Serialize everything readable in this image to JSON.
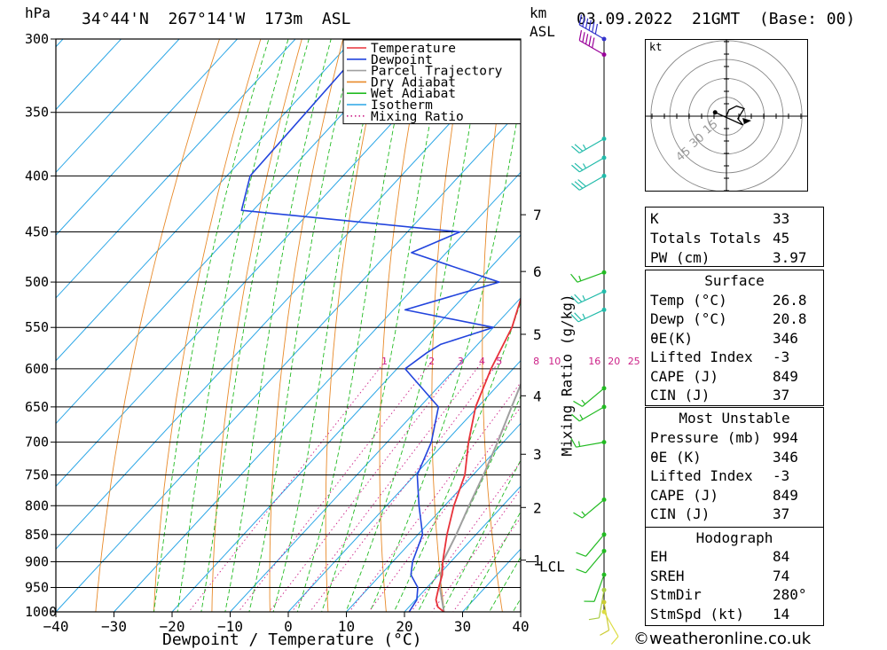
{
  "header": {
    "unit_hpa": "hPa",
    "location": "34°44'N  267°14'W  173m  ASL",
    "unit_km": "km",
    "unit_km2": "ASL",
    "datetime": "03.09.2022  21GMT  (Base: 00)"
  },
  "footer": {
    "copyright": "©weatheronline.co.uk"
  },
  "chart_data": {
    "type": "skew-t",
    "xlabel": "Dewpoint / Temperature (°C)",
    "ylabel_right": "Mixing Ratio (g/kg)",
    "xlim": [
      -40,
      40
    ],
    "ylim": [
      1000,
      300
    ],
    "xticks": [
      -40,
      -30,
      -20,
      -10,
      0,
      10,
      20,
      30,
      40
    ],
    "pressure_levels": [
      300,
      350,
      400,
      450,
      500,
      550,
      600,
      650,
      700,
      750,
      800,
      850,
      900,
      950,
      1000
    ],
    "height_ticks": [
      {
        "label": "7",
        "p": 434
      },
      {
        "label": "6",
        "p": 489
      },
      {
        "label": "5",
        "p": 558
      },
      {
        "label": "4",
        "p": 635
      },
      {
        "label": "3",
        "p": 718
      },
      {
        "label": "2",
        "p": 803
      },
      {
        "label": "1",
        "p": 897
      }
    ],
    "lcl": {
      "label": "LCL",
      "p": 900
    },
    "mixing_ratio_labels": [
      "1",
      "2",
      "3",
      "4",
      "5",
      "8",
      "10",
      "16",
      "20",
      "25"
    ],
    "mixing_ratio_values": [
      1,
      2,
      3,
      4,
      5,
      8,
      10,
      16,
      20,
      25
    ],
    "legend": [
      "Temperature",
      "Dewpoint",
      "Parcel Trajectory",
      "Dry Adiabat",
      "Wet Adiabat",
      "Isotherm",
      "Mixing Ratio"
    ],
    "colors": {
      "temperature": "#e8323a",
      "dewpoint": "#2244dd",
      "parcel": "#a0a0a0",
      "dry_adiabat": "#e88a2a",
      "wet_adiabat": "#22bb22",
      "isotherm": "#2aa6e6",
      "mixing_ratio": "#cc2288",
      "grid": "#000000"
    },
    "temperature": [
      {
        "p": 1000,
        "t": 26.8
      },
      {
        "p": 990,
        "t": 25.0
      },
      {
        "p": 975,
        "t": 23.5
      },
      {
        "p": 950,
        "t": 22.0
      },
      {
        "p": 925,
        "t": 20.6
      },
      {
        "p": 900,
        "t": 18.6
      },
      {
        "p": 850,
        "t": 15.0
      },
      {
        "p": 800,
        "t": 11.6
      },
      {
        "p": 750,
        "t": 8.6
      },
      {
        "p": 700,
        "t": 4.0
      },
      {
        "p": 650,
        "t": -0.4
      },
      {
        "p": 600,
        "t": -3.8
      },
      {
        "p": 550,
        "t": -6.8
      },
      {
        "p": 500,
        "t": -11.6
      },
      {
        "p": 470,
        "t": -14.4
      },
      {
        "p": 450,
        "t": -17.4
      },
      {
        "p": 430,
        "t": -18.2
      },
      {
        "p": 420,
        "t": -20.4
      },
      {
        "p": 400,
        "t": -25.0
      },
      {
        "p": 350,
        "t": -34.8
      },
      {
        "p": 300,
        "t": -45.8
      }
    ],
    "dewpoint": [
      {
        "p": 1000,
        "t": 20.8
      },
      {
        "p": 975,
        "t": 20.2
      },
      {
        "p": 950,
        "t": 18.4
      },
      {
        "p": 925,
        "t": 15.2
      },
      {
        "p": 900,
        "t": 13.4
      },
      {
        "p": 850,
        "t": 10.8
      },
      {
        "p": 800,
        "t": 5.6
      },
      {
        "p": 750,
        "t": 0.4
      },
      {
        "p": 700,
        "t": -2.4
      },
      {
        "p": 650,
        "t": -6.8
      },
      {
        "p": 600,
        "t": -18.6
      },
      {
        "p": 580,
        "t": -17.4
      },
      {
        "p": 570,
        "t": -16.4
      },
      {
        "p": 550,
        "t": -10.0
      },
      {
        "p": 530,
        "t": -28.0
      },
      {
        "p": 500,
        "t": -16.2
      },
      {
        "p": 470,
        "t": -36.0
      },
      {
        "p": 450,
        "t": -31.0
      },
      {
        "p": 430,
        "t": -72.0
      },
      {
        "p": 400,
        "t": -76.0
      },
      {
        "p": 300,
        "t": -77.0
      }
    ],
    "parcel": [
      {
        "p": 1000,
        "t": 26.8
      },
      {
        "p": 950,
        "t": 22.2
      },
      {
        "p": 900,
        "t": 18.6
      },
      {
        "p": 850,
        "t": 16.6
      },
      {
        "p": 800,
        "t": 14.2
      },
      {
        "p": 750,
        "t": 11.8
      },
      {
        "p": 700,
        "t": 9.0
      },
      {
        "p": 650,
        "t": 5.8
      },
      {
        "p": 600,
        "t": 2.4
      },
      {
        "p": 550,
        "t": -1.4
      },
      {
        "p": 500,
        "t": -6.0
      },
      {
        "p": 450,
        "t": -11.4
      },
      {
        "p": 400,
        "t": -18.0
      },
      {
        "p": 370,
        "t": -22.2
      }
    ],
    "wind_barbs": [
      {
        "p": 300,
        "dir": 300,
        "spd": 60,
        "color": "#3333cc"
      },
      {
        "p": 310,
        "dir": 300,
        "spd": 50,
        "color": "#990099"
      },
      {
        "p": 370,
        "dir": 240,
        "spd": 25,
        "color": "#22bbaa"
      },
      {
        "p": 385,
        "dir": 240,
        "spd": 25,
        "color": "#22bbaa"
      },
      {
        "p": 400,
        "dir": 240,
        "spd": 30,
        "color": "#22bbaa"
      },
      {
        "p": 490,
        "dir": 250,
        "spd": 15,
        "color": "#22bb22"
      },
      {
        "p": 510,
        "dir": 245,
        "spd": 25,
        "color": "#22bbaa"
      },
      {
        "p": 530,
        "dir": 245,
        "spd": 25,
        "color": "#22bbaa"
      },
      {
        "p": 625,
        "dir": 230,
        "spd": 15,
        "color": "#22bb22"
      },
      {
        "p": 650,
        "dir": 240,
        "spd": 15,
        "color": "#22bb22"
      },
      {
        "p": 700,
        "dir": 260,
        "spd": 15,
        "color": "#22bb22"
      },
      {
        "p": 790,
        "dir": 230,
        "spd": 15,
        "color": "#22bb22"
      },
      {
        "p": 850,
        "dir": 220,
        "spd": 10,
        "color": "#22bb22"
      },
      {
        "p": 880,
        "dir": 220,
        "spd": 10,
        "color": "#22bb22"
      },
      {
        "p": 925,
        "dir": 200,
        "spd": 10,
        "color": "#22bb22"
      },
      {
        "p": 955,
        "dir": 190,
        "spd": 10,
        "color": "#aacc44"
      },
      {
        "p": 980,
        "dir": 170,
        "spd": 10,
        "color": "#cccc33"
      },
      {
        "p": 1000,
        "dir": 150,
        "spd": 10,
        "color": "#dddd44"
      }
    ]
  },
  "hodograph": {
    "unit": "kt",
    "ring_labels": [
      "15",
      "30",
      "45"
    ],
    "points": [
      [
        0,
        0
      ],
      [
        2,
        5
      ],
      [
        8,
        8
      ],
      [
        14,
        6
      ],
      [
        9,
        -2
      ],
      [
        13,
        -7
      ],
      [
        -9,
        3
      ]
    ]
  },
  "indices": {
    "rows": [
      {
        "k": "K",
        "v": "33"
      },
      {
        "k": "Totals Totals",
        "v": "45"
      },
      {
        "k": "PW (cm)",
        "v": "3.97"
      }
    ]
  },
  "surface": {
    "title": "Surface",
    "rows": [
      {
        "k": "Temp (°C)",
        "v": "26.8"
      },
      {
        "k": "Dewp (°C)",
        "v": "20.8"
      },
      {
        "k": "θE(K)",
        "v": "346"
      },
      {
        "k": "Lifted Index",
        "v": "-3"
      },
      {
        "k": "CAPE (J)",
        "v": "849"
      },
      {
        "k": "CIN (J)",
        "v": "37"
      }
    ]
  },
  "most_unstable": {
    "title": "Most Unstable",
    "rows": [
      {
        "k": "Pressure (mb)",
        "v": "994"
      },
      {
        "k": "θE (K)",
        "v": "346"
      },
      {
        "k": "Lifted Index",
        "v": "-3"
      },
      {
        "k": "CAPE (J)",
        "v": "849"
      },
      {
        "k": "CIN (J)",
        "v": "37"
      }
    ]
  },
  "hodograph_params": {
    "title": "Hodograph",
    "rows": [
      {
        "k": "EH",
        "v": "84"
      },
      {
        "k": "SREH",
        "v": "74"
      },
      {
        "k": "StmDir",
        "v": "280°"
      },
      {
        "k": "StmSpd (kt)",
        "v": "14"
      }
    ]
  }
}
